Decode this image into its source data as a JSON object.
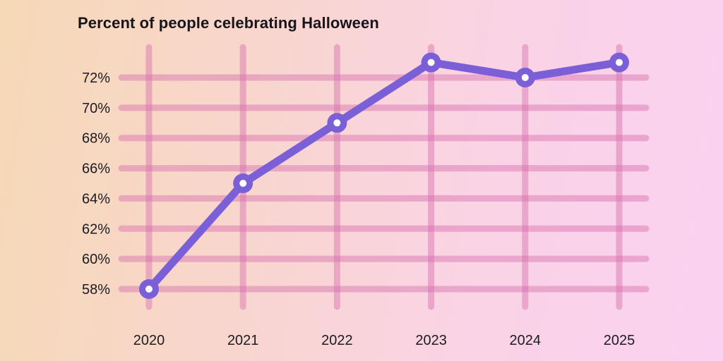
{
  "chart": {
    "title": "Percent of people celebrating Halloween"
  },
  "chart_data": {
    "type": "line",
    "title": "Percent of people celebrating Halloween",
    "x": [
      "2020",
      "2021",
      "2022",
      "2023",
      "2024",
      "2025"
    ],
    "values": [
      58,
      65,
      69,
      73,
      72,
      73
    ],
    "unit": "%",
    "xlabel": "",
    "ylabel": "",
    "ylim": [
      58,
      73
    ],
    "yticks": [
      58,
      60,
      62,
      64,
      66,
      68,
      70,
      72
    ],
    "ytick_labels": [
      "58%",
      "60%",
      "62%",
      "64%",
      "66%",
      "68%",
      "70%",
      "72%"
    ],
    "xtick_labels": [
      "2020",
      "2021",
      "2022",
      "2023",
      "2024",
      "2025"
    ],
    "grid": true,
    "legend": false,
    "colors": {
      "line": "#7b5fd6",
      "marker_fill": "#7b5fd6",
      "marker_center": "#ffffff",
      "gridline": "rgba(214, 110, 172, 0.45)",
      "title_text": "#17151c",
      "tick_text": "#1d1b20",
      "background_left": "#f6d9b6",
      "background_right": "#fbd1f1"
    }
  }
}
